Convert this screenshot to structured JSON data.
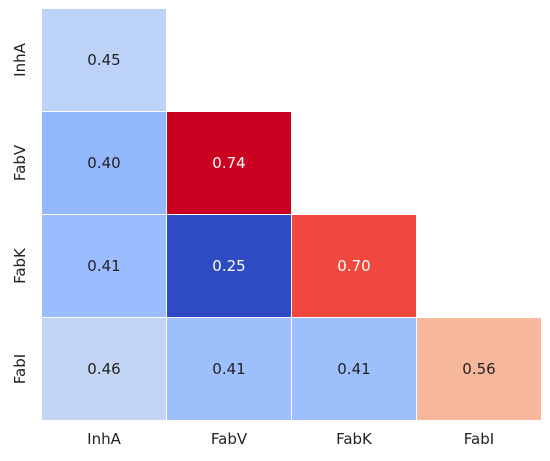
{
  "chart_data": {
    "type": "heatmap",
    "x_categories": [
      "InhA",
      "FabV",
      "FabK",
      "FabI"
    ],
    "y_categories": [
      "InhA",
      "FabV",
      "FabK",
      "FabI"
    ],
    "mask": "upper-triangle",
    "cells": [
      {
        "row": "InhA",
        "col": "InhA",
        "value": 0.45,
        "label": "0.45",
        "color": "#bcd2f7"
      },
      {
        "row": "FabV",
        "col": "InhA",
        "value": 0.4,
        "label": "0.40",
        "color": "#93b8fe"
      },
      {
        "row": "FabV",
        "col": "FabV",
        "value": 0.74,
        "label": "0.74",
        "color": "#cb0122"
      },
      {
        "row": "FabK",
        "col": "InhA",
        "value": 0.41,
        "label": "0.41",
        "color": "#9bbcff"
      },
      {
        "row": "FabK",
        "col": "FabV",
        "value": 0.25,
        "label": "0.25",
        "color": "#2f4bc4"
      },
      {
        "row": "FabK",
        "col": "FabK",
        "value": 0.7,
        "label": "0.70",
        "color": "#f0473e"
      },
      {
        "row": "FabI",
        "col": "InhA",
        "value": 0.46,
        "label": "0.46",
        "color": "#c2d5f4"
      },
      {
        "row": "FabI",
        "col": "FabV",
        "value": 0.41,
        "label": "0.41",
        "color": "#9dc0fc"
      },
      {
        "row": "FabI",
        "col": "FabK",
        "value": 0.41,
        "label": "0.41",
        "color": "#9dc0fc"
      },
      {
        "row": "FabI",
        "col": "FabI",
        "value": 0.56,
        "label": "0.56",
        "color": "#f7b79b"
      }
    ],
    "colormap": "coolwarm",
    "colorbar": false,
    "grid_lines": "white",
    "dark_label_color": "#222222",
    "light_label_color": "#ffffff"
  }
}
